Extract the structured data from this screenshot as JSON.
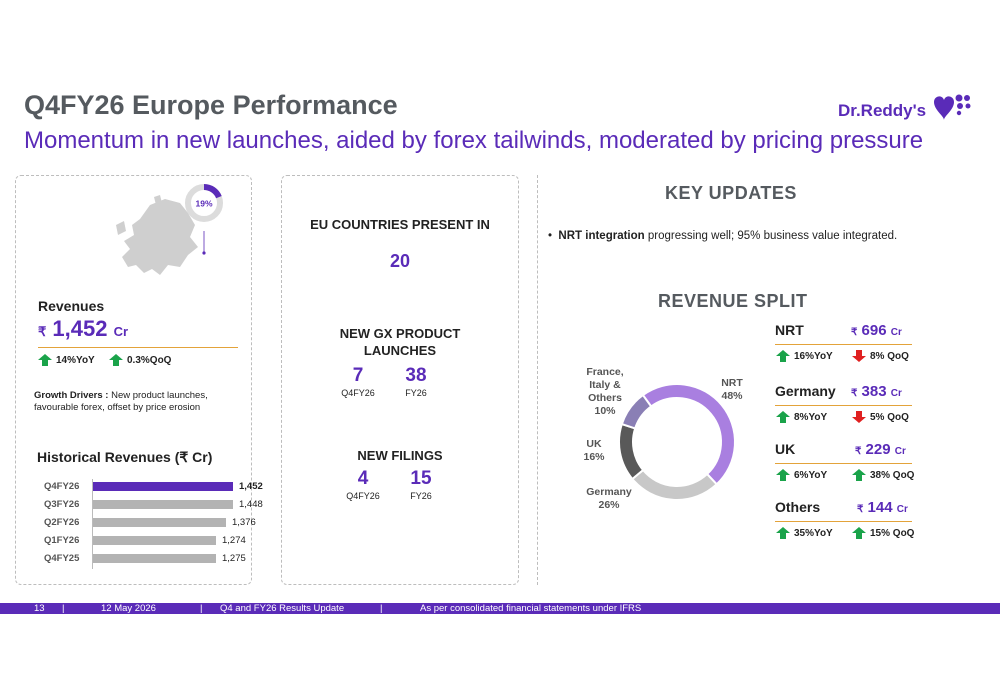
{
  "header": {
    "title": "Q4FY26 Europe Performance",
    "subtitle": "Momentum in new launches, aided by forex tailwinds, moderated by pricing pressure",
    "logo_text": "Dr.Reddy's",
    "logo_color": "#5a2bb8"
  },
  "left_panel": {
    "share_label": "19%",
    "share_value": 0.19,
    "revenues_title": "Revenues",
    "revenue_symbol": "₹",
    "revenue_value": "1,452",
    "revenue_unit": "Cr",
    "yoy": "14%YoY",
    "qoq": "0.3%QoQ",
    "growth_label": "Growth Drivers :",
    "growth_text": " New product launches, favourable forex, offset by price erosion",
    "historical_title": "Historical Revenues  (₹ Cr)"
  },
  "chart_data": {
    "type": "bar",
    "orientation": "horizontal",
    "title": "Historical Revenues  (₹ Cr)",
    "categories": [
      "Q4FY26",
      "Q3FY26",
      "Q2FY26",
      "Q1FY26",
      "Q4FY25"
    ],
    "values": [
      1452,
      1448,
      1376,
      1274,
      1275
    ],
    "value_labels": [
      "1,452",
      "1,448",
      "1,376",
      "1,274",
      "1,275"
    ],
    "colors": [
      "#5a2bb8",
      "#b3b3b3",
      "#b3b3b3",
      "#b3b3b3",
      "#b3b3b3"
    ],
    "xlim": [
      0,
      1452
    ]
  },
  "middle_panel": {
    "eu_head": "EU COUNTRIES PRESENT IN",
    "eu_value": "20",
    "launch_head": "NEW GX PRODUCT LAUNCHES",
    "launch_q": "7",
    "launch_q_label": "Q4FY26",
    "launch_fy": "38",
    "launch_fy_label": "FY26",
    "filing_head": "NEW FILINGS",
    "filing_q": "4",
    "filing_q_label": "Q4FY26",
    "filing_fy": "15",
    "filing_fy_label": "FY26"
  },
  "right_panel": {
    "key_title": "KEY UPDATES",
    "bullet_bold": "NRT integration",
    "bullet_text": " progressing well; 95% business value integrated.",
    "split_title": "REVENUE SPLIT",
    "donut": [
      {
        "name": "NRT",
        "pct": "48%",
        "value": 48,
        "color": "#a97fe0"
      },
      {
        "name": "Germany",
        "pct": "26%",
        "value": 26,
        "color": "#c8c8c8"
      },
      {
        "name": "UK",
        "pct": "16%",
        "value": 16,
        "color": "#595959"
      },
      {
        "name": "France, Italy & Others",
        "pct": "10%",
        "value": 10,
        "color": "#8a7fb5"
      }
    ],
    "donut_labels": {
      "nrt": "NRT",
      "nrt_pct": "48%",
      "germany": "Germany",
      "germany_pct": "26%",
      "uk": "UK",
      "uk_pct": "16%",
      "fio_1": "France,",
      "fio_2": "Italy &",
      "fio_3": "Others",
      "fio_pct": "10%"
    },
    "segments": [
      {
        "name": "NRT",
        "symbol": "₹",
        "value": "696",
        "unit": "Cr",
        "yoy": "16%YoY",
        "yoy_dir": "up",
        "qoq": "8% QoQ",
        "qoq_dir": "down"
      },
      {
        "name": "Germany",
        "symbol": "₹",
        "value": "383",
        "unit": "Cr",
        "yoy": "8%YoY",
        "yoy_dir": "up",
        "qoq": "5% QoQ",
        "qoq_dir": "down"
      },
      {
        "name": "UK",
        "symbol": "₹",
        "value": "229",
        "unit": "Cr",
        "yoy": "6%YoY",
        "yoy_dir": "up",
        "qoq": "38% QoQ",
        "qoq_dir": "up"
      },
      {
        "name": "Others",
        "symbol": "₹",
        "value": "144",
        "unit": "Cr",
        "yoy": "35%YoY",
        "yoy_dir": "up",
        "qoq": "15% QoQ",
        "qoq_dir": "up"
      }
    ]
  },
  "footer": {
    "page": "13",
    "date": "12 May 2026",
    "event": "Q4 and FY26 Results Update",
    "note": "As per consolidated financial statements under IFRS",
    "sep": "|"
  },
  "colors": {
    "accent": "#5a2bb8",
    "up": "#1aa34a",
    "down": "#e02020",
    "rule": "#e3a33a"
  }
}
